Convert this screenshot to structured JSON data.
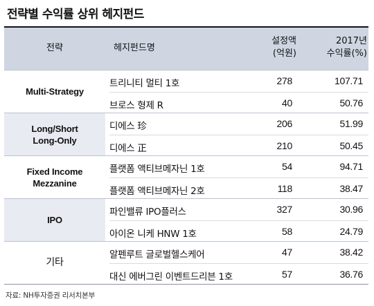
{
  "title": "전략별 수익률 상위 헤지펀드",
  "headers": {
    "strategy": "전략",
    "fund": "헤지펀드명",
    "aum_line1": "설정액",
    "aum_line2": "(억원)",
    "return_line1": "2017년",
    "return_line2": "수익률(%)"
  },
  "groups": [
    {
      "strategy_lines": [
        "Multi-Strategy"
      ],
      "rows": [
        {
          "fund": "트리니티 멀티 1호",
          "aum": "278",
          "return": "107.71"
        },
        {
          "fund": "브로스 형제 R",
          "aum": "40",
          "return": "50.76"
        }
      ]
    },
    {
      "strategy_lines": [
        "Long/Short",
        "Long-Only"
      ],
      "rows": [
        {
          "fund": "디에스 珍",
          "aum": "206",
          "return": "51.99"
        },
        {
          "fund": "디에스 正",
          "aum": "210",
          "return": "50.45"
        }
      ]
    },
    {
      "strategy_lines": [
        "Fixed Income",
        "Mezzanine"
      ],
      "rows": [
        {
          "fund": "플랫폼 액티브메자닌 1호",
          "aum": "54",
          "return": "94.71"
        },
        {
          "fund": "플랫폼 액티브메자닌 2호",
          "aum": "118",
          "return": "38.47"
        }
      ]
    },
    {
      "strategy_lines": [
        "IPO"
      ],
      "rows": [
        {
          "fund": "파인밸류 IPO플러스",
          "aum": "327",
          "return": "30.96"
        },
        {
          "fund": "아이온 니케 HNW 1호",
          "aum": "58",
          "return": "24.79"
        }
      ]
    },
    {
      "strategy_lines": [
        "기타"
      ],
      "rows": [
        {
          "fund": "알펜루트 글로벌헬스케어",
          "aum": "47",
          "return": "38.42"
        },
        {
          "fund": "대신 에버그린 이벤트드리븐 1호",
          "aum": "57",
          "return": "36.76"
        }
      ]
    }
  ],
  "source": "자료: NH투자증권 리서치본부"
}
